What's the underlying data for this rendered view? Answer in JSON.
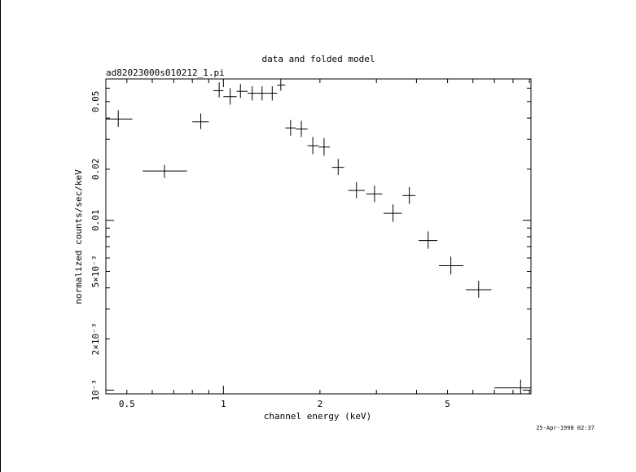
{
  "chart_data": {
    "type": "scatter",
    "title": "data and folded model",
    "subtitle": "ad82023000s010212_1.pi",
    "xlabel": "channel energy (keV)",
    "ylabel": "normalized counts/sec/keV",
    "timestamp": "25-Apr-1998 02:37",
    "x_scale": "log",
    "y_scale": "log",
    "xlim": [
      0.43,
      9.1
    ],
    "ylim": [
      0.00095,
      0.068
    ],
    "x_tick_labels": [
      {
        "value": 0.5,
        "label": "0.5"
      },
      {
        "value": 1,
        "label": "1"
      },
      {
        "value": 2,
        "label": "2"
      },
      {
        "value": 5,
        "label": "5"
      }
    ],
    "y_tick_labels": [
      {
        "value": 0.001,
        "label": "10⁻³"
      },
      {
        "value": 0.002,
        "label": "2×10⁻³"
      },
      {
        "value": 0.005,
        "label": "5×10⁻³"
      },
      {
        "value": 0.01,
        "label": "0.01"
      },
      {
        "value": 0.02,
        "label": "0.02"
      },
      {
        "value": 0.05,
        "label": "0.05"
      }
    ],
    "points": [
      {
        "x": 0.47,
        "xlo": 0.43,
        "xhi": 0.52,
        "y": 0.0395,
        "ylo": 0.0355,
        "yhi": 0.0445
      },
      {
        "x": 0.655,
        "xlo": 0.56,
        "xhi": 0.77,
        "y": 0.0195,
        "ylo": 0.0178,
        "yhi": 0.0212
      },
      {
        "x": 0.85,
        "xlo": 0.8,
        "xhi": 0.9,
        "y": 0.038,
        "ylo": 0.0345,
        "yhi": 0.0425
      },
      {
        "x": 0.97,
        "xlo": 0.93,
        "xhi": 1.0,
        "y": 0.058,
        "ylo": 0.053,
        "yhi": 0.065
      },
      {
        "x": 1.05,
        "xlo": 1.0,
        "xhi": 1.1,
        "y": 0.0535,
        "ylo": 0.048,
        "yhi": 0.06
      },
      {
        "x": 1.13,
        "xlo": 1.1,
        "xhi": 1.19,
        "y": 0.0575,
        "ylo": 0.0525,
        "yhi": 0.0635
      },
      {
        "x": 1.23,
        "xlo": 1.19,
        "xhi": 1.28,
        "y": 0.056,
        "ylo": 0.0508,
        "yhi": 0.0615
      },
      {
        "x": 1.32,
        "xlo": 1.28,
        "xhi": 1.37,
        "y": 0.056,
        "ylo": 0.0508,
        "yhi": 0.0615
      },
      {
        "x": 1.42,
        "xlo": 1.37,
        "xhi": 1.47,
        "y": 0.056,
        "ylo": 0.0508,
        "yhi": 0.0615
      },
      {
        "x": 1.51,
        "xlo": 1.47,
        "xhi": 1.56,
        "y": 0.0625,
        "ylo": 0.058,
        "yhi": 0.068
      },
      {
        "x": 1.62,
        "xlo": 1.56,
        "xhi": 1.68,
        "y": 0.035,
        "ylo": 0.0315,
        "yhi": 0.039
      },
      {
        "x": 1.75,
        "xlo": 1.68,
        "xhi": 1.83,
        "y": 0.0345,
        "ylo": 0.031,
        "yhi": 0.0385
      },
      {
        "x": 1.9,
        "xlo": 1.83,
        "xhi": 1.98,
        "y": 0.0275,
        "ylo": 0.0245,
        "yhi": 0.031
      },
      {
        "x": 2.06,
        "xlo": 1.98,
        "xhi": 2.15,
        "y": 0.027,
        "ylo": 0.024,
        "yhi": 0.0305
      },
      {
        "x": 2.28,
        "xlo": 2.18,
        "xhi": 2.38,
        "y": 0.0205,
        "ylo": 0.0185,
        "yhi": 0.023
      },
      {
        "x": 2.6,
        "xlo": 2.45,
        "xhi": 2.76,
        "y": 0.015,
        "ylo": 0.0135,
        "yhi": 0.0168
      },
      {
        "x": 2.96,
        "xlo": 2.79,
        "xhi": 3.13,
        "y": 0.0143,
        "ylo": 0.0128,
        "yhi": 0.016
      },
      {
        "x": 3.38,
        "xlo": 3.16,
        "xhi": 3.6,
        "y": 0.011,
        "ylo": 0.0098,
        "yhi": 0.0124
      },
      {
        "x": 3.8,
        "xlo": 3.62,
        "xhi": 3.97,
        "y": 0.014,
        "ylo": 0.0125,
        "yhi": 0.0157
      },
      {
        "x": 4.35,
        "xlo": 4.06,
        "xhi": 4.65,
        "y": 0.0076,
        "ylo": 0.0068,
        "yhi": 0.0086
      },
      {
        "x": 5.12,
        "xlo": 4.7,
        "xhi": 5.6,
        "y": 0.0054,
        "ylo": 0.0048,
        "yhi": 0.0061
      },
      {
        "x": 6.25,
        "xlo": 5.7,
        "xhi": 6.85,
        "y": 0.0039,
        "ylo": 0.0035,
        "yhi": 0.0044
      },
      {
        "x": 8.45,
        "xlo": 7.0,
        "xhi": 9.1,
        "y": 0.00103,
        "ylo": 0.00095,
        "yhi": 0.00115
      }
    ]
  }
}
